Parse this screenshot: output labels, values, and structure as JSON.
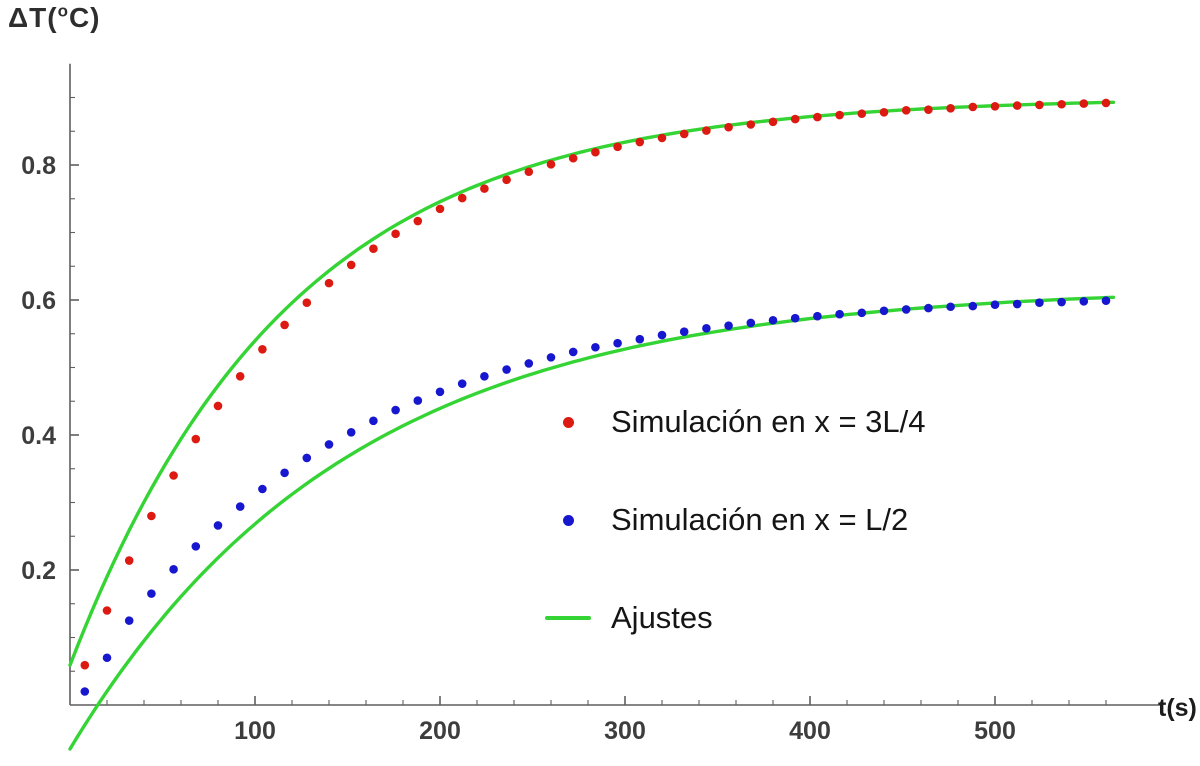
{
  "figure": {
    "background": "#ffffff"
  },
  "axes": {
    "axis_color": "#5f5f5f",
    "tick_label_color": "#3d3d3d",
    "x_title_color": "#1c1c1c"
  },
  "chart_data": {
    "type": "scatter",
    "title": "",
    "xlabel": "t(s)",
    "ylabel": "ΔT(°C)",
    "ylabel_parts": {
      "main": "ΔT(",
      "sup": "o",
      "end": "C)"
    },
    "xlim": [
      0,
      565
    ],
    "ylim": [
      -0.08,
      0.95
    ],
    "x_ticks": [
      100,
      200,
      300,
      400,
      500
    ],
    "x_minor_step": 20,
    "y_ticks": [
      0.2,
      0.4,
      0.6,
      0.8
    ],
    "y_minor_step": 0.05,
    "grid": false,
    "legend_position": "center-right",
    "series": [
      {
        "name": "Simulación en x = 3L/4",
        "kind": "points",
        "color": "#dd1a12",
        "t": [
          8,
          20,
          32,
          44,
          56,
          68,
          80,
          92,
          104,
          116,
          128,
          140,
          152,
          164,
          176,
          188,
          200,
          212,
          224,
          236,
          248,
          260,
          272,
          284,
          296,
          308,
          320,
          332,
          344,
          356,
          368,
          380,
          392,
          404,
          416,
          428,
          440,
          452,
          464,
          476,
          488,
          500,
          512,
          524,
          536,
          548,
          560
        ],
        "y": [
          0.059,
          0.14,
          0.214,
          0.28,
          0.34,
          0.394,
          0.443,
          0.487,
          0.527,
          0.563,
          0.596,
          0.625,
          0.652,
          0.676,
          0.698,
          0.717,
          0.735,
          0.751,
          0.765,
          0.778,
          0.79,
          0.801,
          0.81,
          0.819,
          0.827,
          0.834,
          0.84,
          0.846,
          0.851,
          0.856,
          0.86,
          0.864,
          0.868,
          0.871,
          0.874,
          0.876,
          0.878,
          0.881,
          0.882,
          0.884,
          0.886,
          0.887,
          0.888,
          0.889,
          0.89,
          0.891,
          0.892
        ]
      },
      {
        "name": "Simulación en x = L/2",
        "kind": "points",
        "color": "#1717cf",
        "t": [
          8,
          20,
          32,
          44,
          56,
          68,
          80,
          92,
          104,
          116,
          128,
          140,
          152,
          164,
          176,
          188,
          200,
          212,
          224,
          236,
          248,
          260,
          272,
          284,
          296,
          308,
          320,
          332,
          344,
          356,
          368,
          380,
          392,
          404,
          416,
          428,
          440,
          452,
          464,
          476,
          488,
          500,
          512,
          524,
          536,
          548,
          560
        ],
        "y": [
          0.02,
          0.07,
          0.125,
          0.165,
          0.201,
          0.235,
          0.266,
          0.294,
          0.32,
          0.344,
          0.366,
          0.386,
          0.404,
          0.421,
          0.437,
          0.451,
          0.464,
          0.476,
          0.487,
          0.497,
          0.506,
          0.515,
          0.523,
          0.53,
          0.536,
          0.542,
          0.548,
          0.553,
          0.558,
          0.562,
          0.566,
          0.57,
          0.573,
          0.576,
          0.579,
          0.581,
          0.584,
          0.586,
          0.588,
          0.59,
          0.591,
          0.593,
          0.594,
          0.596,
          0.597,
          0.598,
          0.599
        ]
      }
    ],
    "fits": {
      "name": "Ajustes",
      "color": "#35d435",
      "model": "A*(1-exp(-(t-t0)/tau))",
      "curves": [
        {
          "A": 0.9,
          "tau": 118,
          "t0": -8
        },
        {
          "A": 0.62,
          "tau": 150,
          "t0": 15
        }
      ]
    }
  },
  "legend": {
    "items": [
      {
        "label": "Simulación en x = 3L/4",
        "marker": "dot",
        "color": "#dd1a12"
      },
      {
        "label": "Simulación en x = L/2",
        "marker": "dot",
        "color": "#1717cf"
      },
      {
        "label": "Ajustes",
        "marker": "line",
        "color": "#35d435"
      }
    ]
  }
}
